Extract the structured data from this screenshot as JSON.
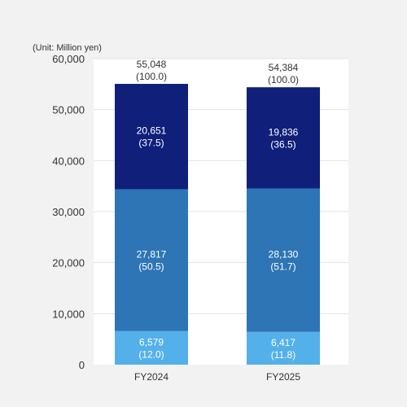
{
  "chart_data": {
    "type": "bar",
    "stacked": true,
    "unit_label": "(Unit: Million yen)",
    "categories": [
      "FY2024",
      "FY2025"
    ],
    "ylim": [
      0,
      60000
    ],
    "yticks": [
      0,
      10000,
      20000,
      30000,
      40000,
      50000,
      60000
    ],
    "ytick_labels": [
      "0",
      "10,000",
      "20,000",
      "30,000",
      "40,000",
      "50,000",
      "60,000"
    ],
    "grid": true,
    "series": [
      {
        "color": "#54b0ea",
        "values": [
          6579,
          6417
        ],
        "value_labels": [
          "6,579",
          "6,417"
        ],
        "percent_labels": [
          "(12.0)",
          "(11.8)"
        ]
      },
      {
        "color": "#2e75b6",
        "values": [
          27817,
          28130
        ],
        "value_labels": [
          "27,817",
          "28,130"
        ],
        "percent_labels": [
          "(50.5)",
          "(51.7)"
        ]
      },
      {
        "color": "#0f1f7a",
        "values": [
          20651,
          19836
        ],
        "value_labels": [
          "20,651",
          "19,836"
        ],
        "percent_labels": [
          "(37.5)",
          "(36.5)"
        ]
      }
    ],
    "totals": [
      55048,
      54384
    ],
    "total_labels": [
      "55,048",
      "54,384"
    ],
    "total_percent_labels": [
      "(100.0)",
      "(100.0)"
    ]
  }
}
